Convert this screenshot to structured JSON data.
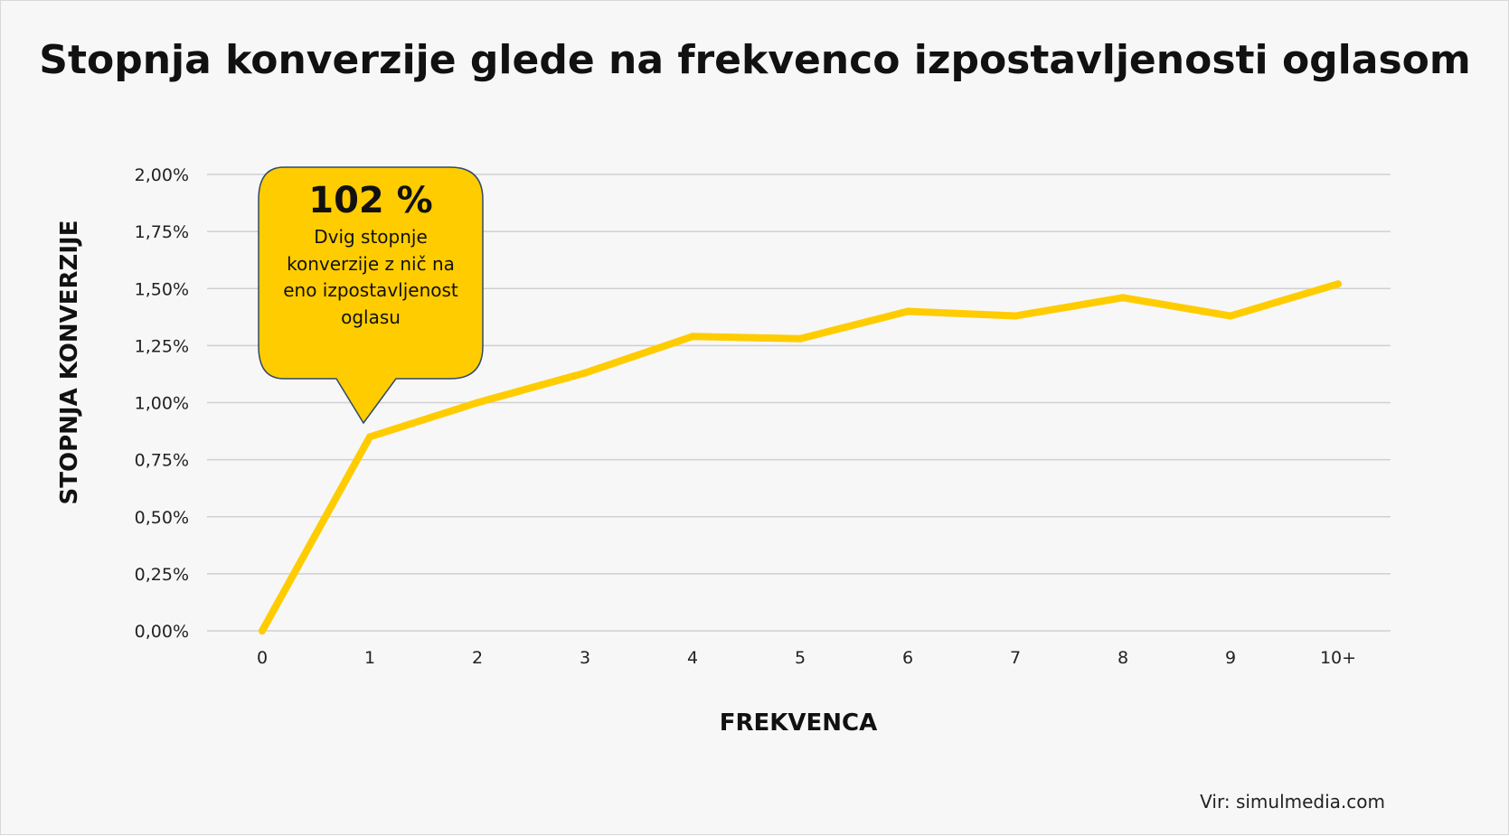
{
  "title": "Stopnja konverzije glede na frekvenco izpostavljenosti oglasom",
  "source": "Vir: simulmedia.com",
  "colors": {
    "line": "#FFCC00",
    "callout_fill": "#FFCC00",
    "callout_border": "#2F4A6B",
    "grid": "#D0D0D0",
    "background": "#F7F7F7"
  },
  "callout": {
    "value": "102 %",
    "lines": [
      "Dvig stopnje",
      "konverzije z nič na",
      "eno izpostavljenost",
      "oglasu"
    ]
  },
  "chart_data": {
    "type": "line",
    "title": "Stopnja konverzije glede na frekvenco izpostavljenosti oglasom",
    "xlabel": "FREKVENCA",
    "ylabel": "STOPNJA KONVERZIJE",
    "categories": [
      "0",
      "1",
      "2",
      "3",
      "4",
      "5",
      "6",
      "7",
      "8",
      "9",
      "10+"
    ],
    "series": [
      {
        "values": [
          0.0,
          0.85,
          1.0,
          1.13,
          1.29,
          1.28,
          1.4,
          1.38,
          1.46,
          1.38,
          1.52
        ]
      }
    ],
    "ylim": [
      0,
      2
    ],
    "yticks": [
      0,
      0.25,
      0.5,
      0.75,
      1.0,
      1.25,
      1.5,
      1.75,
      2.0
    ],
    "ytick_labels": [
      "0,00%",
      "0,25%",
      "0,50%",
      "0,75%",
      "1,00%",
      "1,25%",
      "1,50%",
      "1,75%",
      "2,00%"
    ],
    "grid": true,
    "legend": "none"
  }
}
